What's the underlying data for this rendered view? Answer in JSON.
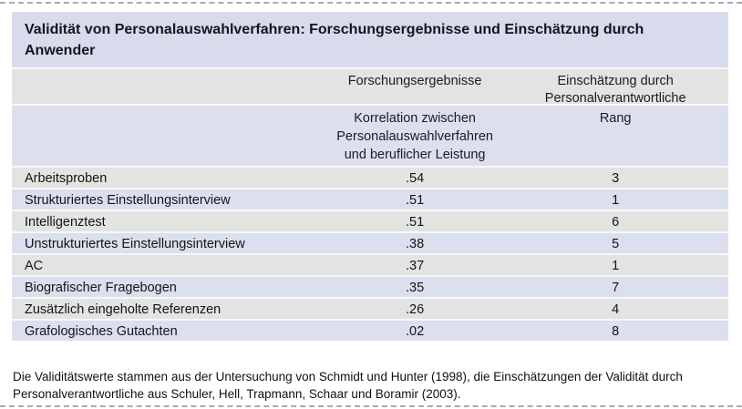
{
  "title": "Validität von Personalauswahlverfahren: Forschungsergebnisse und Einschätzung durch Anwender",
  "table": {
    "group_headers": {
      "research": "Forschungsergebnisse",
      "practitioners": "Einschätzung durch Personalverantwortliche"
    },
    "sub_headers": {
      "korrelation": "Korrelation zwischen Personalauswahlverfahren und beruflicher Leistung",
      "rang": "Rang"
    },
    "rows": [
      {
        "label": "Arbeitsproben",
        "korrelation": ".54",
        "rang": "3"
      },
      {
        "label": "Strukturiertes Einstellungsinterview",
        "korrelation": ".51",
        "rang": "1"
      },
      {
        "label": "Intelligenztest",
        "korrelation": ".51",
        "rang": "6"
      },
      {
        "label": "Unstrukturiertes Einstellungsinterview",
        "korrelation": ".38",
        "rang": "5"
      },
      {
        "label": "AC",
        "korrelation": ".37",
        "rang": "1"
      },
      {
        "label": "Biografischer Fragebogen",
        "korrelation": ".35",
        "rang": "7"
      },
      {
        "label": "Zusätzlich eingeholte Referenzen",
        "korrelation": ".26",
        "rang": "4"
      },
      {
        "label": "Grafologisches Gutachten",
        "korrelation": ".02",
        "rang": "8"
      }
    ]
  },
  "footnote": "Die Validitätswerte stammen aus der Untersuchung von Schmidt und Hunter (1998), die Einschätzungen der Validität durch Personalverantwortliche aus Schuler, Hell, Trapmann, Schaar und Boramir (2003).",
  "colors": {
    "title_band": "#d7dbec",
    "header_gray": "#e3e3e1",
    "header_lavender": "#dcdfee",
    "row_gray": "#e3e3e1",
    "row_lavender": "#dcdfee",
    "text": "#15151f",
    "separator": "#f8f8fa",
    "crop_mark": "#a9a9b0"
  }
}
